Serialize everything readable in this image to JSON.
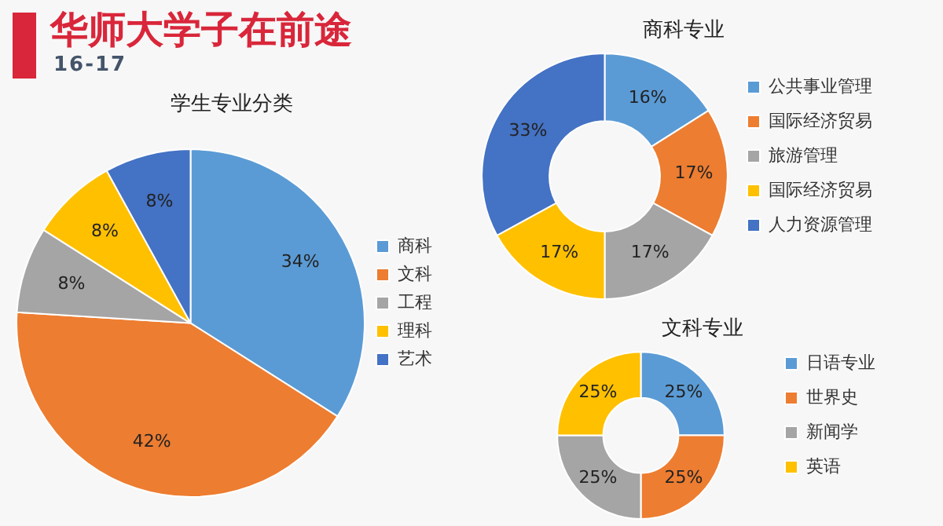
{
  "chart_data": [
    {
      "type": "other",
      "title": "华师大学子在前途",
      "subtitle": "16-17"
    },
    {
      "type": "pie",
      "title": "学生专业分类",
      "categories": [
        "商科",
        "文科",
        "工程",
        "理科",
        "艺术"
      ],
      "values": [
        34,
        42,
        8,
        8,
        8
      ],
      "value_labels": [
        "34%",
        "42%",
        "8%",
        "8%",
        "8%"
      ],
      "colors": [
        "#5b9bd5",
        "#ed7d31",
        "#a5a5a5",
        "#ffc000",
        "#4472c4"
      ],
      "legend": "right"
    },
    {
      "type": "donut",
      "title": "商科专业",
      "categories": [
        "公共事业管理",
        "国际经济贸易",
        "旅游管理",
        "国际经济贸易",
        "人力资源管理"
      ],
      "values": [
        16,
        17,
        17,
        17,
        33
      ],
      "value_labels": [
        "16%",
        "17%",
        "17%",
        "17%",
        "33%"
      ],
      "colors": [
        "#5b9bd5",
        "#ed7d31",
        "#a5a5a5",
        "#ffc000",
        "#4472c4"
      ],
      "legend": "right"
    },
    {
      "type": "donut",
      "title": "文科专业",
      "categories": [
        "日语专业",
        "世界史",
        "新闻学",
        "英语"
      ],
      "values": [
        25,
        25,
        25,
        25
      ],
      "value_labels": [
        "25%",
        "25%",
        "25%",
        "25%"
      ],
      "colors": [
        "#5b9bd5",
        "#ed7d31",
        "#a5a5a5",
        "#ffc000"
      ],
      "legend": "right"
    }
  ]
}
